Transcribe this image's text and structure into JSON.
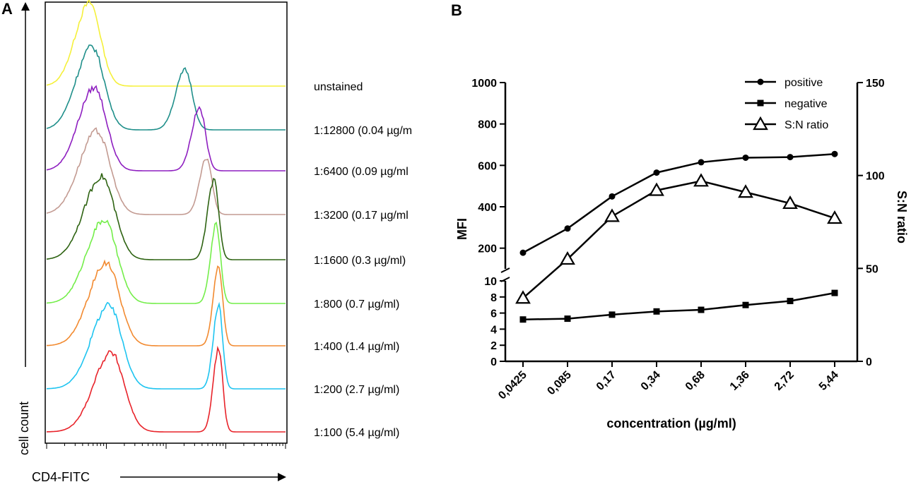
{
  "panel_a": {
    "letter": "A",
    "y_axis_label": "cell count",
    "x_axis_label": "CD4-FITC",
    "samples": [
      {
        "label": "unstained",
        "color": "#f5f03a",
        "peaks": [
          {
            "pos": 0.18,
            "amp": 1.0,
            "w": 0.045
          }
        ]
      },
      {
        "label": "1:12800 (0.04 µg/m",
        "color": "#1f8f8a",
        "peaks": [
          {
            "pos": 0.19,
            "amp": 1.0,
            "w": 0.05
          },
          {
            "pos": 0.58,
            "amp": 0.72,
            "w": 0.03
          }
        ]
      },
      {
        "label": "1:6400 (0.09 µg/ml",
        "color": "#8e1fc0",
        "peaks": [
          {
            "pos": 0.2,
            "amp": 1.0,
            "w": 0.05
          },
          {
            "pos": 0.64,
            "amp": 0.75,
            "w": 0.025
          }
        ]
      },
      {
        "label": "1:3200 (0.17 µg/ml",
        "color": "#c39b92",
        "peaks": [
          {
            "pos": 0.21,
            "amp": 1.0,
            "w": 0.055
          },
          {
            "pos": 0.67,
            "amp": 0.68,
            "w": 0.022
          }
        ]
      },
      {
        "label": "1:1600 (0.3 µg/ml)",
        "color": "#2e6312",
        "peaks": [
          {
            "pos": 0.23,
            "amp": 1.0,
            "w": 0.055
          },
          {
            "pos": 0.7,
            "amp": 0.95,
            "w": 0.02
          }
        ]
      },
      {
        "label": "1:800 (0.7 µg/ml)",
        "color": "#74ee4a",
        "peaks": [
          {
            "pos": 0.24,
            "amp": 1.0,
            "w": 0.055
          },
          {
            "pos": 0.71,
            "amp": 0.95,
            "w": 0.018
          }
        ]
      },
      {
        "label": "1:400 (1.4 µg/ml)",
        "color": "#f28a30",
        "peaks": [
          {
            "pos": 0.25,
            "amp": 1.0,
            "w": 0.055
          },
          {
            "pos": 0.72,
            "amp": 0.95,
            "w": 0.017
          }
        ]
      },
      {
        "label": "1:200 (2.7 µg/ml)",
        "color": "#1ec4f0",
        "peaks": [
          {
            "pos": 0.26,
            "amp": 1.0,
            "w": 0.055
          },
          {
            "pos": 0.72,
            "amp": 1.0,
            "w": 0.017
          }
        ]
      },
      {
        "label": "1:100 (5.4 µg/ml)",
        "color": "#e8232a",
        "peaks": [
          {
            "pos": 0.27,
            "amp": 0.95,
            "w": 0.055
          },
          {
            "pos": 0.72,
            "amp": 1.0,
            "w": 0.017
          }
        ]
      }
    ]
  },
  "chart_data": {
    "type": "line",
    "panel_letter": "B",
    "x_categories": [
      "0,0425",
      "0,085",
      "0,17",
      "0,34",
      "0,68",
      "1,36",
      "2,72",
      "5,44"
    ],
    "xlabel": "concentration (µg/ml)",
    "ylabel": "MFI",
    "y2label": "S:N ratio",
    "y_left_upper": {
      "range": [
        100,
        1000
      ],
      "ticks": [
        "1000",
        "800",
        "600",
        "400",
        "200"
      ],
      "tick_values": [
        1000,
        800,
        600,
        400,
        200
      ]
    },
    "y_left_lower": {
      "range": [
        0,
        10
      ],
      "ticks": [
        "10",
        "8",
        "6",
        "4",
        "2",
        "0"
      ],
      "tick_values": [
        10,
        8,
        6,
        4,
        2,
        0
      ]
    },
    "y_right": {
      "range": [
        0,
        150
      ],
      "ticks": [
        "150",
        "100",
        "50",
        "0"
      ],
      "tick_values": [
        150,
        100,
        50,
        0
      ]
    },
    "series": [
      {
        "name": "positive",
        "axis": "left_upper",
        "marker": "circle",
        "values": [
          178,
          295,
          450,
          565,
          615,
          637,
          640,
          655
        ]
      },
      {
        "name": "negative",
        "axis": "left_lower",
        "marker": "square",
        "values": [
          5.2,
          5.3,
          5.8,
          6.2,
          6.4,
          7.0,
          7.5,
          8.5
        ]
      },
      {
        "name": "S:N ratio",
        "axis": "right",
        "marker": "triangle-open",
        "values": [
          34,
          55,
          78,
          92,
          97,
          91,
          85,
          77
        ]
      }
    ],
    "legend_position": "top-right",
    "grid": false
  }
}
